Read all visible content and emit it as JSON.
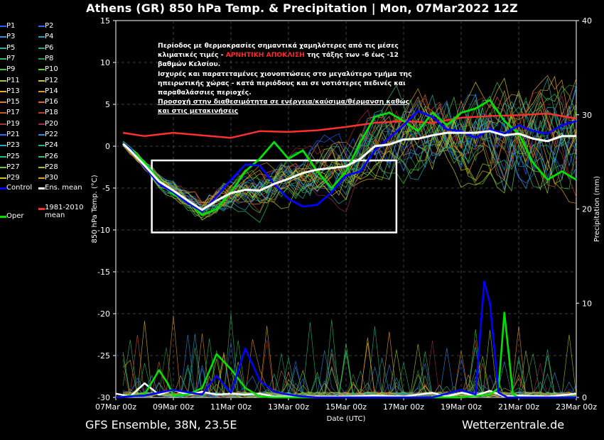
{
  "title": "Athens  (GR)  850 hPa Temp. & Precipitation | Mon, 07Mar2022 12Z",
  "footer_left": "GFS Ensemble, 38N, 23.5E",
  "footer_right": "Wetterzentrale.de",
  "annotation": {
    "line1": "Περίοδος με θερμοκρασίες σημαντικά χαμηλότερες από τις μέσες",
    "line2a": "κλιματικές τιμές - ",
    "line2b": "ΑΡΝΗΤΙΚΗ ΑΠΟΚΛΙΣΗ",
    "line2c": " της τάξης των -6 έως -12",
    "line3": "βαθμών Κελσίου.",
    "line4": "Ισχυρές και παρατεταμένες χιονοπτώσεις στο μεγαλύτερο τμήμα της",
    "line5": "ηπειρωτικής χώρας - κατά περιόδους και σε νοτιότερες πεδινές και",
    "line6": "παραθαλάσσιες περιοχές.",
    "line7": "Προσοχή στην διαθεσιμότητα σε ενέργεια/καύσιμα/θέρμανση καθώς",
    "line8": "και στις μετακινήσεις"
  },
  "legend": [
    {
      "label": "P1",
      "color": "#1f5fff"
    },
    {
      "label": "P2",
      "color": "#2a6cff"
    },
    {
      "label": "P3",
      "color": "#2e8fe6"
    },
    {
      "label": "P4",
      "color": "#2aa0c8"
    },
    {
      "label": "P5",
      "color": "#20b0b0"
    },
    {
      "label": "P6",
      "color": "#19b07a"
    },
    {
      "label": "P7",
      "color": "#2fbf60"
    },
    {
      "label": "P8",
      "color": "#1f9f3f"
    },
    {
      "label": "P9",
      "color": "#3ec83a"
    },
    {
      "label": "P10",
      "color": "#5fcf28"
    },
    {
      "label": "P11",
      "color": "#9fcf20"
    },
    {
      "label": "P12",
      "color": "#c8c820"
    },
    {
      "label": "P13",
      "color": "#e0b020"
    },
    {
      "label": "P14",
      "color": "#e09a20"
    },
    {
      "label": "P15",
      "color": "#d98030"
    },
    {
      "label": "P16",
      "color": "#d06a30"
    },
    {
      "label": "P17",
      "color": "#c05a2a"
    },
    {
      "label": "P18",
      "color": "#b8402a"
    },
    {
      "label": "P19",
      "color": "#a8302a"
    },
    {
      "label": "P20",
      "color": "#9a2a5a"
    },
    {
      "label": "P21",
      "color": "#2a6cff"
    },
    {
      "label": "P22",
      "color": "#2a8cd6"
    },
    {
      "label": "P23",
      "color": "#2aa8c8"
    },
    {
      "label": "P24",
      "color": "#22b49a"
    },
    {
      "label": "P25",
      "color": "#1fbf80"
    },
    {
      "label": "P26",
      "color": "#30c060"
    },
    {
      "label": "P27",
      "color": "#5acf3a"
    },
    {
      "label": "P28",
      "color": "#a0c820"
    },
    {
      "label": "P29",
      "color": "#d6c020"
    },
    {
      "label": "P30",
      "color": "#e0a020"
    },
    {
      "label": "Control",
      "color": "#0000ff"
    },
    {
      "label": "Ens. mean",
      "color": "#ffffff"
    },
    {
      "label": "Oper",
      "color": "#00e000"
    },
    {
      "label": "1981-2010\nmean",
      "color": "#ff3030"
    }
  ],
  "chart_data": {
    "type": "line",
    "xlabel": "Date (UTC)",
    "ylabel": "850 hPa Temp. (°C)",
    "y2label": "Precipitation (mm)",
    "ylim": [
      -30,
      15
    ],
    "y2lim": [
      0,
      40
    ],
    "xlim": [
      "07Mar 00z",
      "23Mar 00z"
    ],
    "yticks": [
      15,
      10,
      5,
      0,
      -5,
      -10,
      -15,
      -20,
      -25,
      -30
    ],
    "y2ticks": [
      40,
      30,
      20,
      10,
      0
    ],
    "xticks": [
      "07Mar 00z",
      "09Mar 00z",
      "11Mar 00z",
      "13Mar 00z",
      "15Mar 00z",
      "17Mar 00z",
      "19Mar 00z",
      "21Mar 00z",
      "23Mar 00z"
    ],
    "grid": true,
    "legend_position": "left-outside",
    "highlight_box": {
      "x": [
        "08Mar 06z",
        "16Mar 18z"
      ],
      "y": [
        -10.3,
        -1.7
      ]
    },
    "series": [
      {
        "name": "1981-2010 mean",
        "axis": "temp",
        "color": "#ff3030",
        "x_days": [
          0.25,
          1,
          2,
          3,
          4,
          5,
          6,
          7,
          8,
          9,
          10,
          11,
          12,
          13,
          14,
          15,
          16
        ],
        "values": [
          1.6,
          1.2,
          1.6,
          1.3,
          1.0,
          1.8,
          1.7,
          1.9,
          2.3,
          2.8,
          3.0,
          2.8,
          3.4,
          3.6,
          3.7,
          3.9,
          3.3
        ]
      },
      {
        "name": "Ens. mean",
        "axis": "temp",
        "color": "#ffffff",
        "x_days": [
          0.25,
          0.5,
          1,
          1.5,
          2,
          2.5,
          3,
          3.5,
          4,
          4.5,
          5,
          5.5,
          6,
          6.5,
          7,
          7.5,
          8,
          8.5,
          9,
          9.5,
          10,
          10.5,
          11,
          11.5,
          12,
          12.5,
          13,
          13.5,
          14,
          14.5,
          15,
          15.5,
          16
        ],
        "values": [
          0.3,
          -0.5,
          -2.3,
          -4.2,
          -5.3,
          -6.5,
          -7.6,
          -6.5,
          -5.6,
          -5.2,
          -5.3,
          -4.5,
          -3.9,
          -3.2,
          -2.8,
          -2.6,
          -2.4,
          -1.5,
          0.0,
          0.2,
          0.8,
          0.9,
          1.3,
          1.6,
          1.6,
          1.6,
          1.8,
          1.3,
          1.5,
          0.9,
          0.6,
          1.2,
          1.2
        ]
      },
      {
        "name": "Control",
        "axis": "temp",
        "color": "#0000ff",
        "x_days": [
          0.25,
          0.5,
          1,
          1.5,
          2,
          2.5,
          3,
          3.5,
          4,
          4.5,
          5,
          5.5,
          6,
          6.5,
          7,
          7.5,
          8,
          8.5,
          9,
          9.5,
          10,
          10.5,
          11,
          11.5,
          12,
          12.5,
          13,
          13.5,
          14,
          14.5,
          15,
          15.5,
          16
        ],
        "values": [
          0.4,
          -0.3,
          -2.5,
          -4.5,
          -5.5,
          -6.8,
          -7.8,
          -6.0,
          -4.0,
          -2.2,
          -2.3,
          -4.5,
          -6.3,
          -7.2,
          -7.0,
          -5.5,
          -3.5,
          -3.0,
          -0.5,
          1.0,
          2.5,
          4.2,
          3.5,
          2.0,
          1.8,
          1.0,
          2.0,
          1.5,
          2.5,
          1.8,
          1.5,
          2.5,
          3.0
        ]
      },
      {
        "name": "Oper",
        "axis": "temp",
        "color": "#00e000",
        "x_days": [
          0.25,
          0.5,
          1,
          1.5,
          2,
          2.5,
          3,
          3.5,
          4,
          4.5,
          5,
          5.5,
          6,
          6.5,
          7,
          7.5,
          8,
          8.5,
          9,
          9.5,
          10,
          10.5,
          11,
          11.5,
          12,
          12.5,
          13,
          13.5,
          14,
          14.5,
          15,
          15.5,
          16
        ],
        "values": [
          0.5,
          -0.2,
          -2.0,
          -4.0,
          -5.8,
          -6.5,
          -8.2,
          -7.5,
          -5.5,
          -3.0,
          -1.5,
          0.5,
          -1.5,
          -0.5,
          -3.0,
          -5.0,
          -3.0,
          0.5,
          3.5,
          4.0,
          3.0,
          1.8,
          4.0,
          2.5,
          4.0,
          4.5,
          5.5,
          3.0,
          1.5,
          -2.0,
          -4.0,
          -3.0,
          -4.0
        ]
      },
      {
        "name": "Control precip",
        "axis": "precip",
        "color": "#0000ff",
        "x_days": [
          0,
          1,
          2,
          3,
          3.3,
          3.5,
          4,
          4.5,
          5,
          5.5,
          6,
          6.5,
          7,
          8,
          9,
          10,
          11,
          12,
          12.5,
          12.8,
          13,
          13.3,
          13.6,
          14,
          15,
          16
        ],
        "values": [
          0,
          0.2,
          0.8,
          0.3,
          1.5,
          2.3,
          0.5,
          5.2,
          1.8,
          0.6,
          0.3,
          0.1,
          0,
          0,
          0,
          0,
          0,
          0.8,
          0.3,
          12.3,
          10.0,
          0.5,
          0,
          0,
          0,
          0
        ]
      },
      {
        "name": "Oper precip",
        "axis": "precip",
        "color": "#00e000",
        "x_days": [
          0,
          1,
          1.5,
          1.8,
          2,
          2.5,
          3,
          3.5,
          4,
          4.5,
          5,
          5.5,
          6,
          7,
          8,
          9,
          10,
          11,
          12,
          13,
          13.3,
          13.5,
          13.8,
          14,
          15,
          16
        ],
        "values": [
          0,
          0.3,
          2.9,
          1.5,
          0.2,
          0.3,
          1.0,
          4.6,
          3.0,
          1.0,
          0.1,
          0,
          0,
          0,
          0,
          0,
          0,
          0,
          0,
          0.3,
          1.0,
          9.0,
          0.3,
          0,
          0,
          0
        ]
      },
      {
        "name": "Ens. mean precip",
        "axis": "precip",
        "color": "#ffffff",
        "x_days": [
          0,
          0.5,
          1,
          1.5,
          2,
          2.5,
          3,
          3.5,
          4,
          4.5,
          5,
          5.5,
          6,
          7,
          8,
          9,
          10,
          11,
          11.5,
          12,
          12.5,
          13,
          13.5,
          14,
          15,
          16
        ],
        "values": [
          0.4,
          0.1,
          1.5,
          0.3,
          0.8,
          0.3,
          0.6,
          0.3,
          0.4,
          0.3,
          0.4,
          0.1,
          0.1,
          0.1,
          0.1,
          0.2,
          0.1,
          0.5,
          0.1,
          0.5,
          0.2,
          0.7,
          0.1,
          0.2,
          0.1,
          0.4
        ]
      }
    ]
  }
}
